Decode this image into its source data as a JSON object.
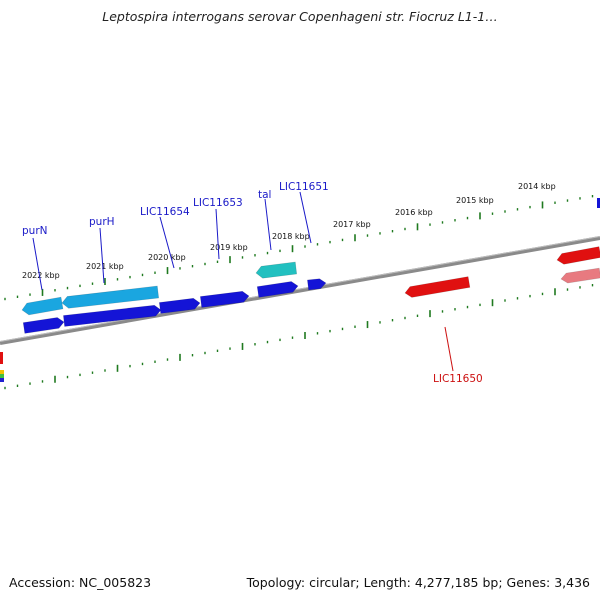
{
  "header": {
    "title": "Leptospira interrogans serovar Copenhageni str. Fiocruz L1-1…"
  },
  "footer": {
    "accession": "Accession: NC_005823",
    "summary": "Topology: circular; Length: 4,277,185 bp; Genes: 3,436"
  },
  "colors": {
    "backbone": "#8a8a8a",
    "tick": "#1f7a1f",
    "forward_gene": "#1414d6",
    "forward_gene_light": "#1aa6e0",
    "forward_gene_teal": "#22c0c0",
    "reverse_gene": "#e01010",
    "reverse_gene_light": "#e87a80",
    "forward_label": "#1a1ac8",
    "reverse_label": "#cc1010"
  },
  "scale_labels": [
    "2022 kbp",
    "2021 kbp",
    "2020 kbp",
    "2019 kbp",
    "2018 kbp",
    "2017 kbp",
    "2016 kbp",
    "2015 kbp",
    "2014 kbp"
  ],
  "gene_labels": {
    "forward": [
      "purN",
      "purH",
      "LIC11654",
      "LIC11653",
      "tal",
      "LIC11651"
    ],
    "reverse": [
      "LIC11650"
    ]
  }
}
